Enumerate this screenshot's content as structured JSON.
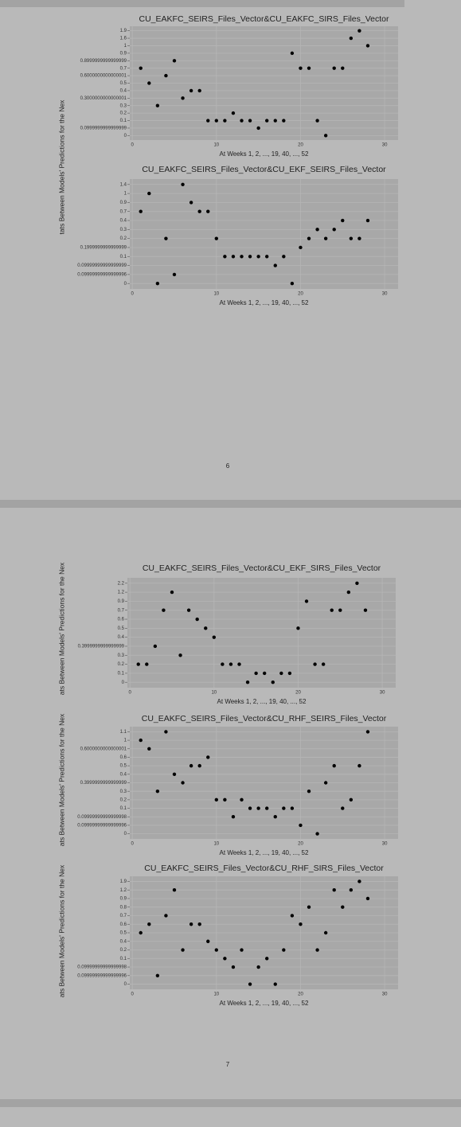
{
  "pages": [
    {
      "number": "6",
      "y_labels": [
        "tats Between Models' Predictions for the Nex"
      ]
    },
    {
      "number": "7",
      "y_labels": [
        "ats Between Models' Predictions for the Nex",
        "ats Between Models' Predictions for the Nex",
        "ats Between Models' Predictions for the Nex"
      ]
    }
  ],
  "chart_data": [
    {
      "type": "scatter",
      "title": "CU_EAKFC_SEIRS_Files_Vector&CU_EAKFC_SIRS_Files_Vector",
      "x_label": "At Weeks 1, 2, ..., 19, 40, ..., 52",
      "color": "#000000",
      "xlim": [
        -0.3,
        31.6
      ],
      "xticks": [
        0,
        10,
        20,
        30
      ],
      "ycategories": [
        "0",
        "0.0999999999999999",
        "0.1",
        "0.2",
        "0.3",
        "0.3000000000000001",
        "0.4",
        "0.5",
        "0.6000000000000001",
        "0.7",
        "0.8999999999999999",
        "0.9",
        "1",
        "1.6",
        "1.9"
      ],
      "x": [
        1,
        2,
        3,
        4,
        5,
        6,
        7,
        8,
        9,
        10,
        11,
        12,
        13,
        14,
        15,
        16,
        17,
        18,
        19,
        20,
        21,
        22,
        23,
        24,
        25,
        26,
        27,
        28
      ],
      "values": [
        "0.7",
        "0.5",
        "0.3",
        "0.6000000000000001",
        "0.8999999999999999",
        "0.3000000000000001",
        "0.4",
        "0.4",
        "0.1",
        "0.1",
        "0.1",
        "0.2",
        "0.1",
        "0.1",
        "0.0999999999999999",
        "0.1",
        "0.1",
        "0.1",
        "0.9",
        "0.7",
        "0.7",
        "0.1",
        "0",
        "0.7",
        "0.7",
        "1.6",
        "1.9",
        "1"
      ]
    },
    {
      "type": "scatter",
      "title": "CU_EAKFC_SEIRS_Files_Vector&CU_EKF_SEIRS_Files_Vector",
      "x_label": "At Weeks 1, 2, ..., 19, 40, ..., 52",
      "color": "#000000",
      "xlim": [
        -0.3,
        31.6
      ],
      "xticks": [
        0,
        10,
        20,
        30
      ],
      "ycategories": [
        "0",
        "0.09999999999999996",
        "0.09999999999999999",
        "0.1",
        "0.1999999999999999",
        "0.2",
        "0.3",
        "0.4",
        "0.7",
        "0.9",
        "1",
        "1.4"
      ],
      "x": [
        1,
        2,
        3,
        4,
        5,
        6,
        7,
        8,
        9,
        10,
        11,
        12,
        13,
        14,
        15,
        16,
        17,
        18,
        19,
        20,
        21,
        22,
        23,
        24,
        25,
        26,
        27,
        28
      ],
      "values": [
        "0.7",
        "1",
        "0",
        "0.2",
        "0.09999999999999996",
        "1.4",
        "0.9",
        "0.7",
        "0.7",
        "0.2",
        "0.1",
        "0.1",
        "0.1",
        "0.1",
        "0.1",
        "0.1",
        "0.09999999999999999",
        "0.1",
        "0",
        "0.1999999999999999",
        "0.2",
        "0.3",
        "0.2",
        "0.3",
        "0.4",
        "0.2",
        "0.2",
        "0.4"
      ]
    },
    {
      "type": "scatter",
      "title": "CU_EAKFC_SEIRS_Files_Vector&CU_EKF_SIRS_Files_Vector",
      "x_label": "At Weeks 1, 2, ..., 19, 40, ..., 52",
      "color": "#000000",
      "xlim": [
        -0.3,
        31.6
      ],
      "xticks": [
        0,
        10,
        20,
        30
      ],
      "ycategories": [
        "0",
        "0.1",
        "0.2",
        "0.3",
        "0.3999999999999999",
        "0.4",
        "0.5",
        "0.6",
        "0.7",
        "0.9",
        "1.2",
        "2.2"
      ],
      "x": [
        1,
        2,
        3,
        4,
        5,
        6,
        7,
        8,
        9,
        10,
        11,
        12,
        13,
        14,
        15,
        16,
        17,
        18,
        19,
        20,
        21,
        22,
        23,
        24,
        25,
        26,
        27,
        28
      ],
      "values": [
        "0.2",
        "0.2",
        "0.3999999999999999",
        "0.7",
        "1.2",
        "0.3",
        "0.7",
        "0.6",
        "0.5",
        "0.4",
        "0.2",
        "0.2",
        "0.2",
        "0",
        "0.1",
        "0.1",
        "0",
        "0.1",
        "0.1",
        "0.5",
        "0.9",
        "0.2",
        "0.2",
        "0.7",
        "0.7",
        "1.2",
        "2.2",
        "0.7"
      ]
    },
    {
      "type": "scatter",
      "title": "CU_EAKFC_SEIRS_Files_Vector&CU_RHF_SEIRS_Files_Vector",
      "x_label": "At Weeks 1, 2, ..., 19, 40, ..., 52",
      "color": "#000000",
      "xlim": [
        -0.3,
        31.6
      ],
      "xticks": [
        0,
        10,
        20,
        30
      ],
      "ycategories": [
        "0",
        "0.09999999999999996",
        "0.09999999999999998",
        "0.1",
        "0.2",
        "0.3",
        "0.3999999999999999",
        "0.4",
        "0.5",
        "0.6",
        "0.6000000000000001",
        "1",
        "1.1"
      ],
      "x": [
        1,
        2,
        3,
        4,
        5,
        6,
        7,
        8,
        9,
        10,
        11,
        12,
        13,
        14,
        15,
        16,
        17,
        18,
        19,
        20,
        21,
        22,
        23,
        24,
        25,
        26,
        27,
        28
      ],
      "values": [
        "1",
        "0.6000000000000001",
        "0.3",
        "1.1",
        "0.4",
        "0.3999999999999999",
        "0.5",
        "0.5",
        "0.6",
        "0.2",
        "0.2",
        "0.09999999999999998",
        "0.2",
        "0.1",
        "0.1",
        "0.1",
        "0.09999999999999998",
        "0.1",
        "0.1",
        "0.09999999999999996",
        "0.3",
        "0",
        "0.3999999999999999",
        "0.5",
        "0.1",
        "0.2",
        "0.5",
        "1.1"
      ]
    },
    {
      "type": "scatter",
      "title": "CU_EAKFC_SEIRS_Files_Vector&CU_RHF_SIRS_Files_Vector",
      "x_label": "At Weeks 1, 2, ..., 19, 40, ..., 52",
      "color": "#000000",
      "xlim": [
        -0.3,
        31.6
      ],
      "xticks": [
        0,
        10,
        20,
        30
      ],
      "ycategories": [
        "0",
        "0.09999999999999996",
        "0.09999999999999998",
        "0.1",
        "0.2",
        "0.4",
        "0.5",
        "0.6",
        "0.7",
        "0.8",
        "0.9",
        "1.2",
        "1.9"
      ],
      "x": [
        1,
        2,
        3,
        4,
        5,
        6,
        7,
        8,
        9,
        10,
        11,
        12,
        13,
        14,
        15,
        16,
        17,
        18,
        19,
        20,
        21,
        22,
        23,
        24,
        25,
        26,
        27,
        28
      ],
      "values": [
        "0.5",
        "0.6",
        "0.09999999999999996",
        "0.7",
        "1.2",
        "0.2",
        "0.6",
        "0.6",
        "0.4",
        "0.2",
        "0.1",
        "0.09999999999999998",
        "0.2",
        "0",
        "0.09999999999999998",
        "0.1",
        "0",
        "0.2",
        "0.7",
        "0.6",
        "0.8",
        "0.2",
        "0.5",
        "1.2",
        "0.8",
        "1.2",
        "1.9",
        "0.9"
      ]
    }
  ]
}
